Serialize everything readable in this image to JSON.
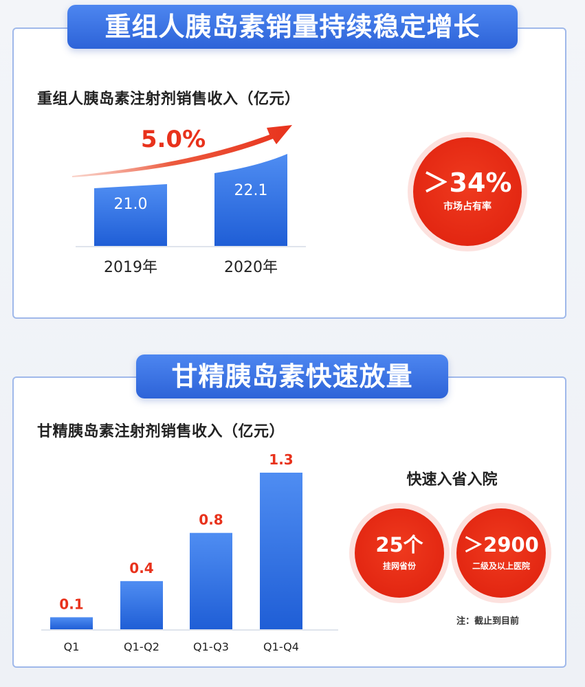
{
  "section1": {
    "banner": "重组人胰岛素销量持续稳定增长",
    "subtitle": "重组人胰岛素注射剂销售收入（亿元）",
    "growth_label": "5.0%",
    "market_share": {
      "value": "＞34%",
      "label": "市场占有率"
    }
  },
  "section2": {
    "banner": "甘精胰岛素快速放量",
    "subtitle": "甘精胰岛素注射剂销售收入（亿元）",
    "hospital_title": "快速入省入院",
    "stat1": {
      "value": "25个",
      "label": "挂网省份"
    },
    "stat2": {
      "value": "＞2900",
      "label": "二级及以上医院"
    },
    "footnote": "注：截止到目前"
  },
  "chart_data": [
    {
      "type": "bar",
      "title": "重组人胰岛素注射剂销售收入（亿元）",
      "categories": [
        "2019年",
        "2020年"
      ],
      "values": [
        21.0,
        22.1
      ],
      "value_labels": [
        "21.0",
        "22.1"
      ],
      "annotation": "5.0%",
      "colors": {
        "bar_top": "#4f8df2",
        "bar_bottom": "#1f5ed6",
        "arrow": "#e8321c",
        "value_label": "#ffffff"
      }
    },
    {
      "type": "bar",
      "title": "甘精胰岛素注射剂销售收入（亿元）",
      "categories": [
        "Q1",
        "Q1-Q2",
        "Q1-Q3",
        "Q1-Q4"
      ],
      "values": [
        0.1,
        0.4,
        0.8,
        1.3
      ],
      "value_labels": [
        "0.1",
        "0.4",
        "0.8",
        "1.3"
      ],
      "colors": {
        "bar_top": "#4f8df2",
        "bar_bottom": "#1f5ed6",
        "value_label": "#e8321c"
      }
    }
  ]
}
